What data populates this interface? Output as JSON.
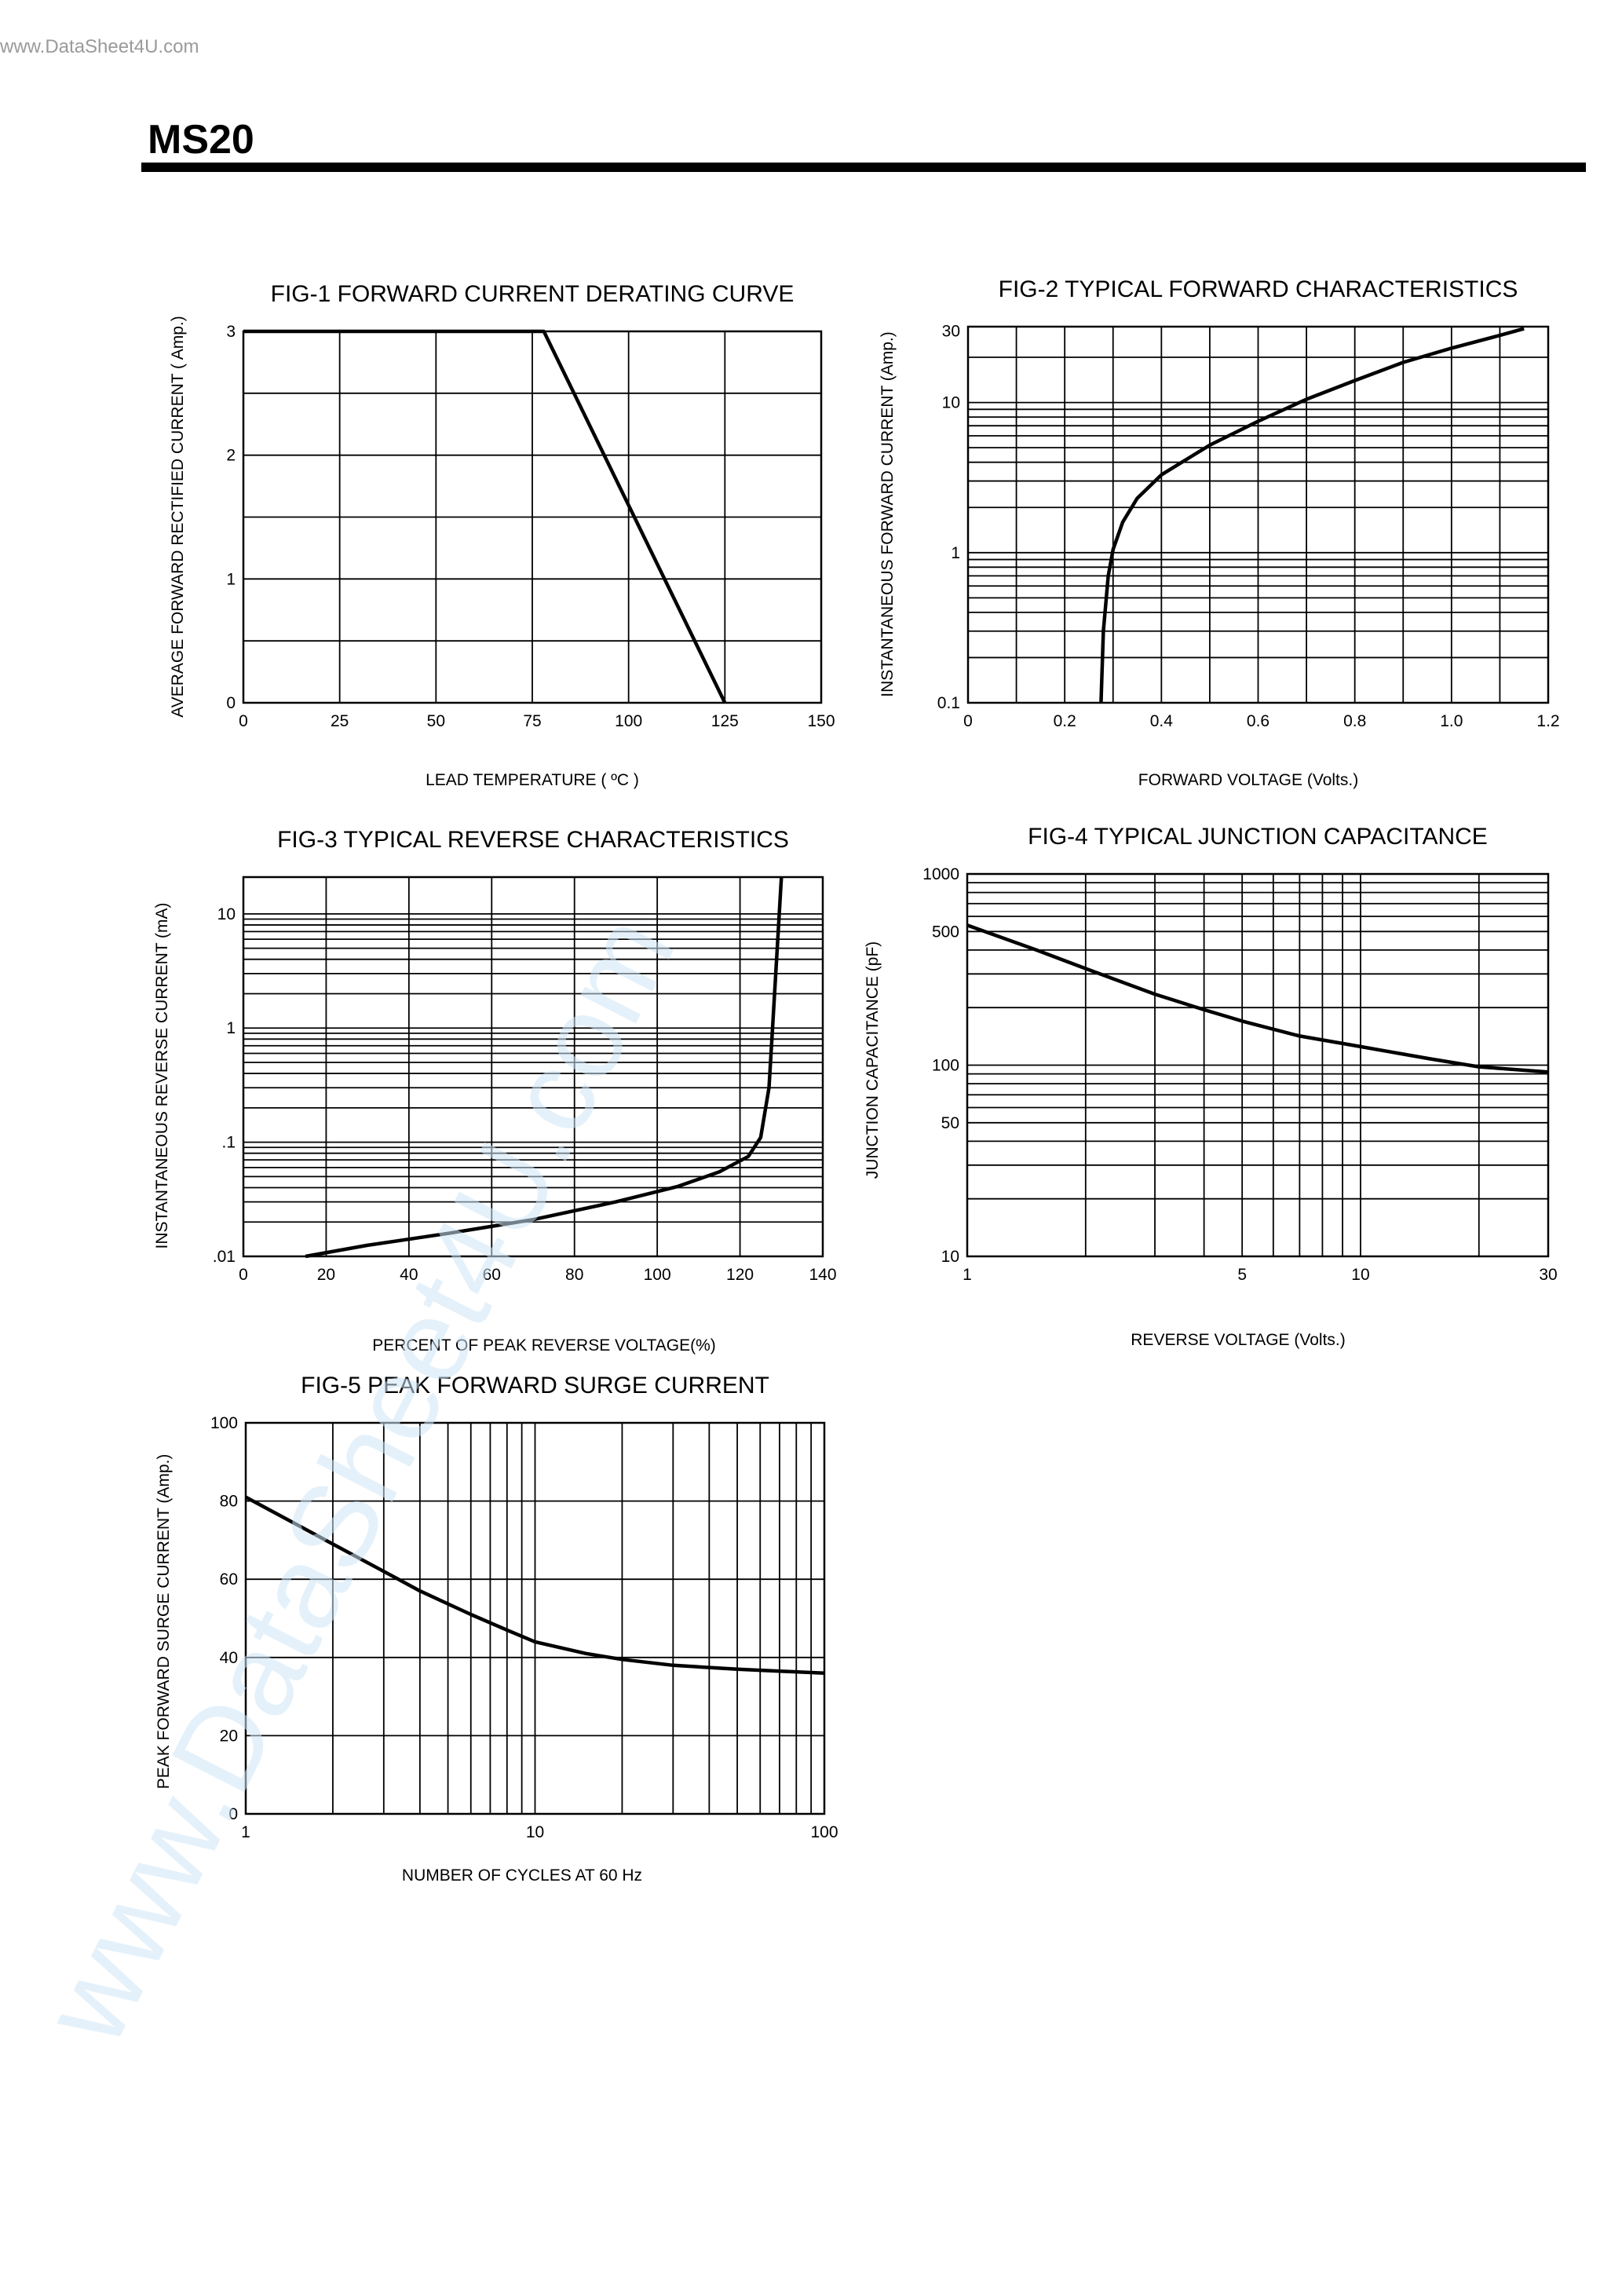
{
  "site_url": "www.DataSheet4U.com",
  "part_number": "MS20",
  "watermark": "www.DataSheet4U.com",
  "chart_data": [
    {
      "id": "fig1",
      "type": "line",
      "title": "FIG-1 FORWARD CURRENT DERATING CURVE",
      "xlabel": "LEAD TEMPERATURE ( ºC )",
      "ylabel": "AVERAGE FORWARD RECTIFIED CURRENT ( Amp.)",
      "xscale": "linear",
      "yscale": "linear",
      "xlim": [
        0,
        150
      ],
      "ylim": [
        0,
        3
      ],
      "xticks": [
        0,
        25,
        50,
        75,
        100,
        125,
        150
      ],
      "xtick_labels": [
        "0",
        "25",
        "50",
        "75",
        "100",
        "125",
        "150"
      ],
      "yticks": [
        0,
        1,
        2,
        3
      ],
      "ytick_labels": [
        "0",
        "1",
        "2",
        "3"
      ],
      "xgrid": [
        25,
        50,
        75,
        100,
        125
      ],
      "ygrid": [
        0.5,
        1,
        1.5,
        2,
        2.5
      ],
      "series": [
        {
          "x": [
            0,
            78,
            125
          ],
          "y": [
            3,
            3,
            0
          ]
        }
      ]
    },
    {
      "id": "fig2",
      "type": "line",
      "title": "FIG-2 TYPICAL FORWARD CHARACTERISTICS",
      "xlabel": "FORWARD VOLTAGE (Volts.)",
      "ylabel": "INSTANTANEOUS FORWARD CURRENT (Amp.)",
      "xscale": "linear",
      "yscale": "log",
      "xlim": [
        0,
        1.2
      ],
      "ylim": [
        0.1,
        32
      ],
      "xticks": [
        0,
        0.2,
        0.4,
        0.6,
        0.8,
        1.0,
        1.2
      ],
      "xtick_labels": [
        "0",
        "0.2",
        "0.4",
        "0.6",
        "0.8",
        "1.0",
        "1.2"
      ],
      "yticks": [
        0.1,
        1,
        10,
        30
      ],
      "ytick_labels": [
        "0.1",
        "1",
        "10",
        "30"
      ],
      "xgrid": [
        0.1,
        0.2,
        0.3,
        0.4,
        0.5,
        0.6,
        0.7,
        0.8,
        0.9,
        1.0,
        1.1
      ],
      "ygrid": [
        0.2,
        0.3,
        0.4,
        0.5,
        0.6,
        0.7,
        0.8,
        0.9,
        1,
        2,
        3,
        4,
        5,
        6,
        7,
        8,
        9,
        10,
        20
      ],
      "series": [
        {
          "x": [
            0.275,
            0.28,
            0.29,
            0.3,
            0.32,
            0.35,
            0.4,
            0.5,
            0.6,
            0.7,
            0.8,
            0.9,
            1.0,
            1.1,
            1.15
          ],
          "y": [
            0.1,
            0.3,
            0.7,
            1.05,
            1.6,
            2.3,
            3.3,
            5.2,
            7.5,
            10.5,
            14,
            18.5,
            23,
            28,
            31
          ]
        }
      ]
    },
    {
      "id": "fig3",
      "type": "line",
      "title": "FIG-3 TYPICAL REVERSE CHARACTERISTICS",
      "xlabel": "PERCENT OF PEAK REVERSE VOLTAGE(%)",
      "ylabel": "INSTANTANEOUS REVERSE CURRENT (mA)",
      "xscale": "linear",
      "yscale": "log",
      "xlim": [
        0,
        140
      ],
      "ylim": [
        0.01,
        21
      ],
      "xticks": [
        0,
        20,
        40,
        60,
        80,
        100,
        120,
        140
      ],
      "xtick_labels": [
        "0",
        "20",
        "40",
        "60",
        "80",
        "100",
        "120",
        "140"
      ],
      "yticks": [
        0.01,
        0.1,
        1,
        10
      ],
      "ytick_labels": [
        ".01",
        ".1",
        "1",
        "10"
      ],
      "xgrid": [
        20,
        40,
        60,
        80,
        100,
        120
      ],
      "ygrid": [
        0.02,
        0.03,
        0.04,
        0.05,
        0.06,
        0.07,
        0.08,
        0.09,
        0.1,
        0.2,
        0.3,
        0.4,
        0.5,
        0.6,
        0.7,
        0.8,
        0.9,
        1,
        2,
        3,
        4,
        5,
        6,
        7,
        8,
        9,
        10
      ],
      "series": [
        {
          "x": [
            15,
            30,
            50,
            70,
            90,
            105,
            115,
            122,
            125,
            127,
            128,
            129,
            130
          ],
          "y": [
            0.01,
            0.0125,
            0.016,
            0.021,
            0.03,
            0.041,
            0.055,
            0.075,
            0.11,
            0.3,
            1.2,
            5,
            21
          ]
        }
      ]
    },
    {
      "id": "fig4",
      "type": "line",
      "title": "FIG-4 TYPICAL JUNCTION CAPACITANCE",
      "xlabel": "REVERSE VOLTAGE (Volts.)",
      "ylabel": "JUNCTION CAPACITANCE (pF)",
      "xscale": "log",
      "yscale": "log",
      "xlim": [
        1,
        30
      ],
      "ylim": [
        10,
        1000
      ],
      "xticks": [
        1,
        5,
        10,
        30
      ],
      "xtick_labels": [
        "1",
        "5",
        "10",
        "30"
      ],
      "yticks": [
        10,
        50,
        100,
        500,
        1000
      ],
      "ytick_labels": [
        "10",
        "50",
        "100",
        "500",
        "1000"
      ],
      "xgrid": [
        2,
        3,
        4,
        5,
        6,
        7,
        8,
        9,
        10,
        20
      ],
      "ygrid": [
        20,
        30,
        40,
        50,
        60,
        70,
        80,
        90,
        100,
        200,
        300,
        400,
        500,
        600,
        700,
        800,
        900
      ],
      "series": [
        {
          "x": [
            1,
            1.5,
            2,
            3,
            4,
            5,
            7,
            10,
            15,
            20,
            30
          ],
          "y": [
            540,
            400,
            320,
            235,
            195,
            170,
            142,
            125,
            108,
            98,
            92
          ]
        }
      ]
    },
    {
      "id": "fig5",
      "type": "line",
      "title": "FIG-5 PEAK FORWARD SURGE CURRENT",
      "xlabel": "NUMBER OF CYCLES AT 60 Hz",
      "ylabel": "PEAK FORWARD SURGE CURRENT (Amp.)",
      "xscale": "log",
      "yscale": "linear",
      "xlim": [
        1,
        100
      ],
      "ylim": [
        0,
        100
      ],
      "xticks": [
        1,
        10,
        100
      ],
      "xtick_labels": [
        "1",
        "10",
        "100"
      ],
      "yticks": [
        0,
        20,
        40,
        60,
        80,
        100
      ],
      "ytick_labels": [
        "0",
        "20",
        "40",
        "60",
        "80",
        "100"
      ],
      "xgrid": [
        2,
        3,
        4,
        5,
        6,
        7,
        8,
        9,
        10,
        20,
        30,
        40,
        50,
        60,
        70,
        80,
        90
      ],
      "ygrid": [
        20,
        40,
        60,
        80
      ],
      "series": [
        {
          "x": [
            1,
            1.5,
            2,
            3,
            4,
            6,
            8,
            10,
            15,
            20,
            30,
            50,
            70,
            100
          ],
          "y": [
            81,
            74,
            69,
            62,
            57,
            51,
            47,
            44,
            41,
            39.5,
            38,
            37,
            36.5,
            36
          ]
        }
      ]
    }
  ]
}
